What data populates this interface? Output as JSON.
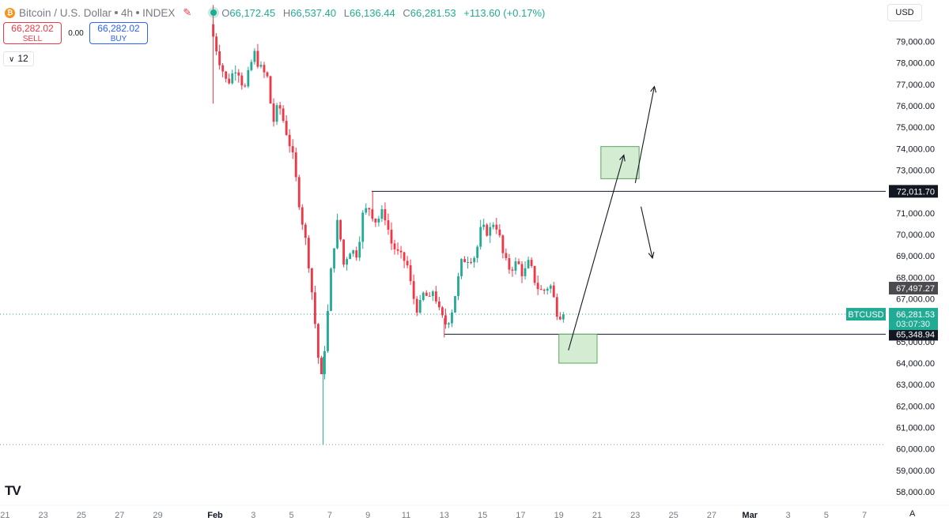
{
  "header": {
    "symbol": "Bitcoin / U.S. Dollar",
    "interval": "4h",
    "exchange": "INDEX",
    "ohlc": {
      "o_label": "O",
      "o": "66,172.45",
      "h_label": "H",
      "h": "66,537.40",
      "l_label": "L",
      "l": "66,136.44",
      "c_label": "C",
      "c": "66,281.53",
      "change": "+113.60 (+0.17%)"
    }
  },
  "trade": {
    "sell_price": "66,282.02",
    "sell_label": "SELL",
    "spread": "0.00",
    "buy_price": "66,282.02",
    "buy_label": "BUY",
    "lots": "12"
  },
  "currency": "USD",
  "auto_label": "A",
  "colors": {
    "up": "#22ab94",
    "down": "#f23645",
    "box": "#d4ecd2",
    "box_border": "#5aa85d"
  },
  "chart_data": {
    "type": "candlestick",
    "ylim": [
      57600,
      80200
    ],
    "y_ticks": [
      58000,
      59000,
      60000,
      61000,
      62000,
      63000,
      64000,
      65000,
      66000,
      67000,
      68000,
      69000,
      70000,
      71000,
      72000,
      73000,
      74000,
      75000,
      76000,
      77000,
      78000,
      79000
    ],
    "y_tick_labels": [
      "58,000.00",
      "59,000.00",
      "60,000.00",
      "61,000.00",
      "62,000.00",
      "63,000.00",
      "64,000.00",
      "65,000.00",
      "66,000.00",
      "67,000.00",
      "68,000.00",
      "69,000.00",
      "70,000.00",
      "71,000.00",
      "72,000.00",
      "73,000.00",
      "74,000.00",
      "75,000.00",
      "76,000.00",
      "77,000.00",
      "78,000.00",
      "79,000.00"
    ],
    "x_labels": [
      {
        "label": "21",
        "day": -11
      },
      {
        "label": "23",
        "day": -9
      },
      {
        "label": "25",
        "day": -7
      },
      {
        "label": "27",
        "day": -5
      },
      {
        "label": "29",
        "day": -3
      },
      {
        "label": "Feb",
        "day": 0
      },
      {
        "label": "3",
        "day": 2
      },
      {
        "label": "5",
        "day": 4
      },
      {
        "label": "7",
        "day": 6
      },
      {
        "label": "9",
        "day": 8
      },
      {
        "label": "11",
        "day": 10
      },
      {
        "label": "13",
        "day": 12
      },
      {
        "label": "15",
        "day": 14
      },
      {
        "label": "17",
        "day": 16
      },
      {
        "label": "19",
        "day": 18
      },
      {
        "label": "21",
        "day": 20
      },
      {
        "label": "23",
        "day": 22
      },
      {
        "label": "25",
        "day": 24
      },
      {
        "label": "27",
        "day": 26
      },
      {
        "label": "Mar",
        "day": 28
      },
      {
        "label": "3",
        "day": 30
      },
      {
        "label": "5",
        "day": 32
      },
      {
        "label": "7",
        "day": 34
      }
    ],
    "key_points": [
      {
        "day": -0.1,
        "price": 79800
      },
      {
        "day": 0.4,
        "price": 78100
      },
      {
        "day": 0.8,
        "price": 77000
      },
      {
        "day": 1.3,
        "price": 77900
      },
      {
        "day": 1.7,
        "price": 76700
      },
      {
        "day": 2.2,
        "price": 78500
      },
      {
        "day": 2.5,
        "price": 77800
      },
      {
        "day": 2.9,
        "price": 77300
      },
      {
        "day": 3.2,
        "price": 75200
      },
      {
        "day": 3.5,
        "price": 76100
      },
      {
        "day": 3.8,
        "price": 75100
      },
      {
        "day": 4.2,
        "price": 73800
      },
      {
        "day": 4.6,
        "price": 71300
      },
      {
        "day": 5.0,
        "price": 69200
      },
      {
        "day": 5.3,
        "price": 66800
      },
      {
        "day": 5.7,
        "price": 63000
      },
      {
        "day": 6.0,
        "price": 65600
      },
      {
        "day": 6.3,
        "price": 69000
      },
      {
        "day": 6.6,
        "price": 70700
      },
      {
        "day": 6.9,
        "price": 68600
      },
      {
        "day": 7.2,
        "price": 69300
      },
      {
        "day": 7.6,
        "price": 69100
      },
      {
        "day": 7.9,
        "price": 70900
      },
      {
        "day": 8.2,
        "price": 71300
      },
      {
        "day": 8.6,
        "price": 70600
      },
      {
        "day": 9.0,
        "price": 71100
      },
      {
        "day": 9.4,
        "price": 69600
      },
      {
        "day": 9.8,
        "price": 69000
      },
      {
        "day": 10.2,
        "price": 68700
      },
      {
        "day": 10.5,
        "price": 67200
      },
      {
        "day": 10.8,
        "price": 66400
      },
      {
        "day": 11.1,
        "price": 67300
      },
      {
        "day": 11.4,
        "price": 66900
      },
      {
        "day": 11.6,
        "price": 67500
      },
      {
        "day": 11.9,
        "price": 66400
      },
      {
        "day": 12.2,
        "price": 65800
      },
      {
        "day": 12.5,
        "price": 66200
      },
      {
        "day": 12.8,
        "price": 67500
      },
      {
        "day": 13.1,
        "price": 68800
      },
      {
        "day": 13.4,
        "price": 68900
      },
      {
        "day": 13.8,
        "price": 69000
      },
      {
        "day": 14.1,
        "price": 70300
      },
      {
        "day": 14.5,
        "price": 70100
      },
      {
        "day": 14.8,
        "price": 70700
      },
      {
        "day": 15.0,
        "price": 70100
      },
      {
        "day": 15.3,
        "price": 68800
      },
      {
        "day": 15.6,
        "price": 68400
      },
      {
        "day": 16.0,
        "price": 68700
      },
      {
        "day": 16.3,
        "price": 68100
      },
      {
        "day": 16.6,
        "price": 68700
      },
      {
        "day": 17.0,
        "price": 67600
      },
      {
        "day": 17.3,
        "price": 67300
      },
      {
        "day": 17.7,
        "price": 67700
      },
      {
        "day": 17.9,
        "price": 67000
      },
      {
        "day": 18.1,
        "price": 66300
      },
      {
        "day": 18.3,
        "price": 66280
      }
    ],
    "extreme_wicks": [
      {
        "day": -0.1,
        "high": 80700,
        "low": 76100
      },
      {
        "day": 5.65,
        "high": 64300,
        "low": 60200
      },
      {
        "day": 8.25,
        "high": 72000,
        "low": 70600
      },
      {
        "day": 12.0,
        "high": 66100,
        "low": 65200
      }
    ],
    "levels": [
      {
        "price": 72011.7,
        "label": "72,011.70",
        "from_day": 8.2,
        "style": "solid"
      },
      {
        "price": 65348.94,
        "label": "65,348.94",
        "from_day": 12.0,
        "style": "solid"
      },
      {
        "price": 60200,
        "label": "",
        "from_day": -12,
        "style": "dotted"
      }
    ],
    "prev_close": {
      "price": 67497.27,
      "label": "67,497.27"
    },
    "last_price": {
      "price": 66281.53,
      "symbol": "BTCUSD",
      "label": "66,281.53",
      "countdown": "03:07:30"
    },
    "zones": [
      {
        "day0": 18.0,
        "day1": 20.0,
        "p0": 65350,
        "p1": 64000
      },
      {
        "day0": 20.2,
        "day1": 22.2,
        "p0": 74100,
        "p1": 72600
      }
    ],
    "arrows": [
      {
        "d0": 18.5,
        "p0": 64600,
        "d1": 21.4,
        "p1": 73700
      },
      {
        "d0": 22.0,
        "p0": 72400,
        "d1": 23.0,
        "p1": 76900
      },
      {
        "d0": 22.3,
        "p0": 71300,
        "d1": 22.9,
        "p1": 68900
      }
    ]
  }
}
